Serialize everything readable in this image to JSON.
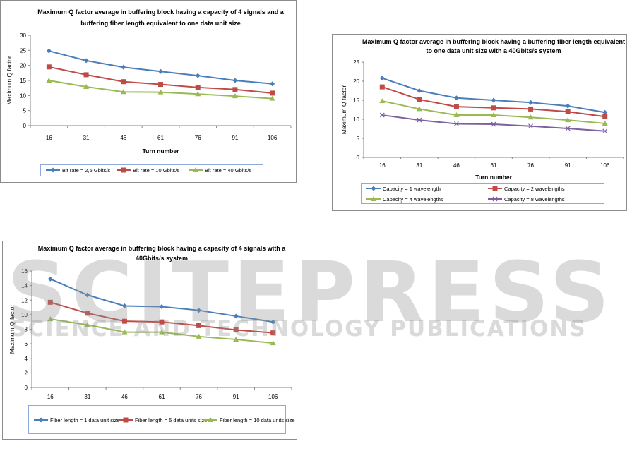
{
  "watermark": {
    "line1": "SCITEPRESS",
    "line2": "SCIENCE AND TECHNOLOGY PUBLICATIONS"
  },
  "chart_data": [
    {
      "type": "line",
      "title": [
        "Maximum Q factor average in buffering block having a capacity of 4 signals and a",
        "buffering fiber length equivalent to one data unit size"
      ],
      "xlabel": "Turn number",
      "ylabel": "Maximum Q factor",
      "categories": [
        "16",
        "31",
        "46",
        "61",
        "76",
        "91",
        "106"
      ],
      "ylim": [
        0,
        30
      ],
      "yticks": [
        0,
        5,
        10,
        15,
        20,
        25,
        30
      ],
      "legend_position": "bottom",
      "series": [
        {
          "name": "Bit rate = 2,5 Gbits/s",
          "color": "#4a7ebb",
          "marker": "diamond",
          "values": [
            24.8,
            21.6,
            19.4,
            18.0,
            16.6,
            15.0,
            13.9
          ]
        },
        {
          "name": "Bit rate = 10 Gbits/s",
          "color": "#be4b48",
          "marker": "square",
          "values": [
            19.5,
            16.9,
            14.6,
            13.7,
            12.7,
            12.0,
            10.8
          ]
        },
        {
          "name": "Bit rate = 40 Gbits/s",
          "color": "#98b954",
          "marker": "triangle",
          "values": [
            15.0,
            12.9,
            11.2,
            11.1,
            10.5,
            9.8,
            9.0
          ]
        }
      ]
    },
    {
      "type": "line",
      "title": [
        "Maximum Q factor average in buffering block having a buffering fiber length equivalent",
        "to one data unit size with a 40Gbits/s system"
      ],
      "xlabel": "Turn number",
      "ylabel": "Maximum Q factor",
      "categories": [
        "16",
        "31",
        "46",
        "61",
        "76",
        "91",
        "106"
      ],
      "ylim": [
        0,
        25
      ],
      "yticks": [
        0,
        5,
        10,
        15,
        20,
        25
      ],
      "legend_position": "bottom",
      "series": [
        {
          "name": "Capacity = 1 wavelength",
          "color": "#4a7ebb",
          "marker": "diamond",
          "values": [
            20.8,
            17.5,
            15.6,
            15.0,
            14.4,
            13.5,
            11.8
          ]
        },
        {
          "name": "Capacity = 2 wavelengths",
          "color": "#be4b48",
          "marker": "square",
          "values": [
            18.5,
            15.2,
            13.3,
            13.0,
            12.7,
            12.0,
            10.7
          ]
        },
        {
          "name": "Capacity = 4 wavelengths",
          "color": "#98b954",
          "marker": "triangle",
          "values": [
            14.8,
            12.7,
            11.1,
            11.1,
            10.5,
            9.8,
            8.9
          ]
        },
        {
          "name": "Capacity = 8 wavelengths",
          "color": "#7d60a0",
          "marker": "x",
          "values": [
            11.1,
            9.8,
            8.8,
            8.7,
            8.2,
            7.6,
            6.9
          ]
        }
      ]
    },
    {
      "type": "line",
      "title": [
        "Maximum Q factor average in buffering block having a capacity of 4 signals  with a",
        "40Gbits/s system"
      ],
      "xlabel": "Turn number",
      "ylabel": "Maximum Q factor",
      "categories": [
        "16",
        "31",
        "46",
        "61",
        "76",
        "91",
        "106"
      ],
      "ylim": [
        0,
        16
      ],
      "yticks": [
        0,
        2,
        4,
        6,
        8,
        10,
        12,
        14,
        16
      ],
      "legend_position": "bottom",
      "series": [
        {
          "name": "Fiber length = 1 data unit size",
          "color": "#4a7ebb",
          "marker": "diamond",
          "values": [
            14.9,
            12.7,
            11.2,
            11.1,
            10.6,
            9.8,
            9.0
          ]
        },
        {
          "name": "Fiber length = 5 data units size",
          "color": "#be4b48",
          "marker": "square",
          "values": [
            11.7,
            10.2,
            9.1,
            9.0,
            8.5,
            7.9,
            7.5
          ]
        },
        {
          "name": "Fiber length = 10 data units size",
          "color": "#98b954",
          "marker": "triangle",
          "values": [
            9.4,
            8.6,
            7.6,
            7.6,
            7.0,
            6.6,
            6.1
          ]
        }
      ]
    }
  ]
}
